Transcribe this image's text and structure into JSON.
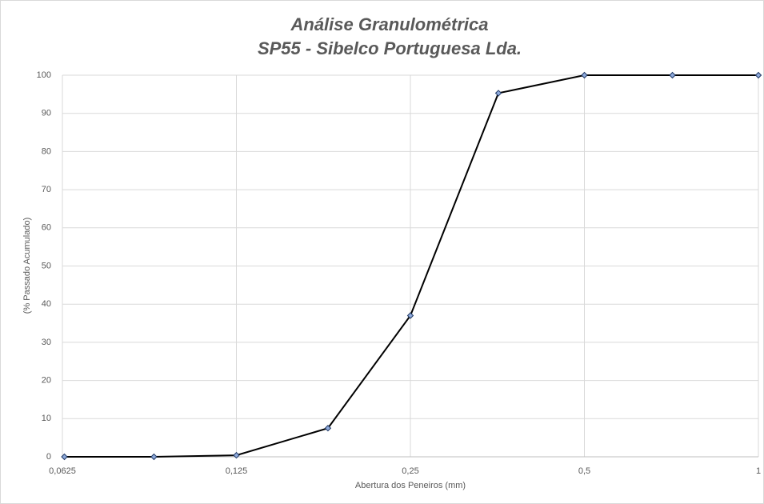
{
  "chart_data": {
    "type": "line",
    "title": "Análise Granulométrica",
    "subtitle": "SP55 - Sibelco Portuguesa Lda.",
    "x_label": "Abertura dos Peneiros (mm)",
    "y_label": "(% Passado Acumulado)",
    "x": [
      0.063,
      0.09,
      0.125,
      0.18,
      0.25,
      0.355,
      0.5,
      0.71,
      1
    ],
    "values": [
      0,
      0,
      0.4,
      7.5,
      37,
      95.3,
      100,
      100,
      100
    ],
    "color": "#000000",
    "marker_color": "#1f3864",
    "xscale": "log",
    "xlim": [
      0.0625,
      1
    ],
    "xticks": [
      {
        "value": 0.0625,
        "label": "0,0625"
      },
      {
        "value": 0.125,
        "label": "0,125"
      },
      {
        "value": 0.25,
        "label": "0,25"
      },
      {
        "value": 0.5,
        "label": "0,5"
      },
      1
    ],
    "ylim": [
      0,
      100
    ],
    "yticks": [
      0,
      10,
      20,
      30,
      40,
      50,
      60,
      70,
      80,
      90,
      100
    ],
    "grid": true
  }
}
